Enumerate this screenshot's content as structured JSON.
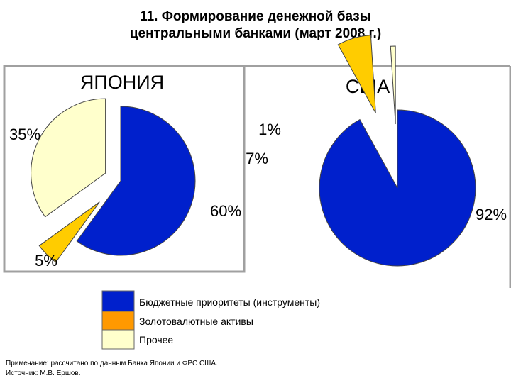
{
  "title_line1": "11. Формирование денежной базы",
  "title_line2": "центральными банками (март 2008 г.)",
  "chart_data": [
    {
      "type": "pie",
      "title": "ЯПОНИЯ",
      "slices": [
        {
          "category": "Бюджетные приоритеты (инструменты)",
          "value": 60,
          "label": "60%",
          "color": "#0020cc"
        },
        {
          "category": "Золотовалютные активы",
          "value": 5,
          "label": "5%",
          "color": "#ffcc00"
        },
        {
          "category": "Прочее",
          "value": 35,
          "label": "35%",
          "color": "#ffffcc"
        }
      ]
    },
    {
      "type": "pie",
      "title": "США",
      "slices": [
        {
          "category": "Бюджетные приоритеты (инструменты)",
          "value": 92,
          "label": "92%",
          "color": "#0020cc"
        },
        {
          "category": "Золотовалютные активы",
          "value": 7,
          "label": "7%",
          "color": "#ffcc00"
        },
        {
          "category": "Прочее",
          "value": 1,
          "label": "1%",
          "color": "#ffffcc"
        }
      ]
    }
  ],
  "legend": [
    {
      "label": "Бюджетные приоритеты (инструменты)",
      "color": "#0020cc"
    },
    {
      "label": "Золотовалютные активы",
      "color": "#ff9900"
    },
    {
      "label": "Прочее",
      "color": "#ffffcc"
    }
  ],
  "note_line1": "Примечание: рассчитано по данным Банка Японии и ФРС США.",
  "note_line2": "Источник: М.В. Ершов."
}
